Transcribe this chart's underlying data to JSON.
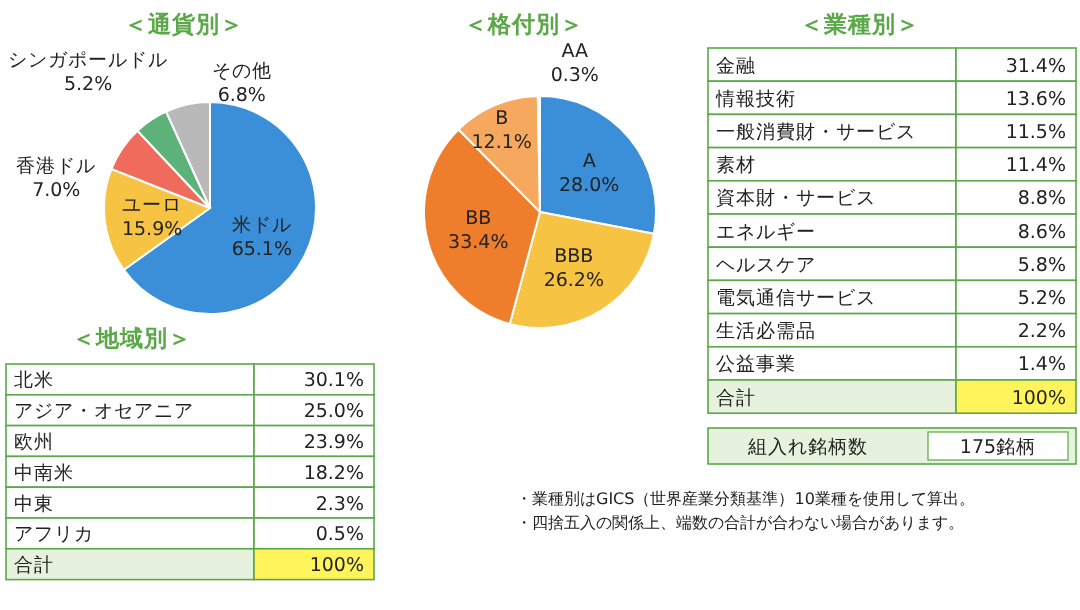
{
  "chart_data": [
    {
      "type": "pie",
      "title": "＜通貨別＞",
      "categories": [
        "米ドル",
        "ユーロ",
        "香港ドル",
        "シンガポールドル",
        "その他"
      ],
      "values": [
        65.1,
        15.9,
        7.0,
        5.2,
        6.8
      ],
      "value_labels": [
        "65.1%",
        "15.9%",
        "7.0%",
        "5.2%",
        "6.8%"
      ],
      "colors": [
        "#3b8fd8",
        "#f6c343",
        "#ef6b5b",
        "#5db27a",
        "#b9b9b9"
      ]
    },
    {
      "type": "pie",
      "title": "＜格付別＞",
      "categories": [
        "A",
        "BBB",
        "BB",
        "B",
        "AA"
      ],
      "values": [
        28.0,
        26.2,
        33.4,
        12.1,
        0.3
      ],
      "value_labels": [
        "28.0%",
        "26.2%",
        "33.4%",
        "12.1%",
        "0.3%"
      ],
      "colors": [
        "#3b8fd8",
        "#f6c343",
        "#ef7e2c",
        "#f6a95e",
        "#9fc6ea"
      ]
    },
    {
      "type": "other",
      "title": "＜業種別＞",
      "categories": [
        "金融",
        "情報技術",
        "一般消費財・サービス",
        "素材",
        "資本財・サービス",
        "エネルギー",
        "ヘルスケア",
        "電気通信サービス",
        "生活必需品",
        "公益事業",
        "合計"
      ],
      "values": [
        31.4,
        13.6,
        11.5,
        11.4,
        8.8,
        8.6,
        5.8,
        5.2,
        2.2,
        1.4,
        100
      ],
      "value_labels": [
        "31.4%",
        "13.6%",
        "11.5%",
        "11.4%",
        "8.8%",
        "8.6%",
        "5.8%",
        "5.2%",
        "2.2%",
        "1.4%",
        "100%"
      ]
    },
    {
      "type": "other",
      "title": "＜地域別＞",
      "categories": [
        "北米",
        "アジア・オセアニア",
        "欧州",
        "中南米",
        "中東",
        "アフリカ",
        "合計"
      ],
      "values": [
        30.1,
        25.0,
        23.9,
        18.2,
        2.3,
        0.5,
        100
      ],
      "value_labels": [
        "30.1%",
        "25.0%",
        "23.9%",
        "18.2%",
        "2.3%",
        "0.5%",
        "100%"
      ]
    },
    {
      "type": "other",
      "annotations": [
        "組入れ銘柄数",
        "175銘柄",
        "・業種別はGICS（世界産業分類基準）10業種を使用して算出。",
        "・四捨五入の関係上、端数の合計が合わない場合があります。"
      ]
    }
  ]
}
